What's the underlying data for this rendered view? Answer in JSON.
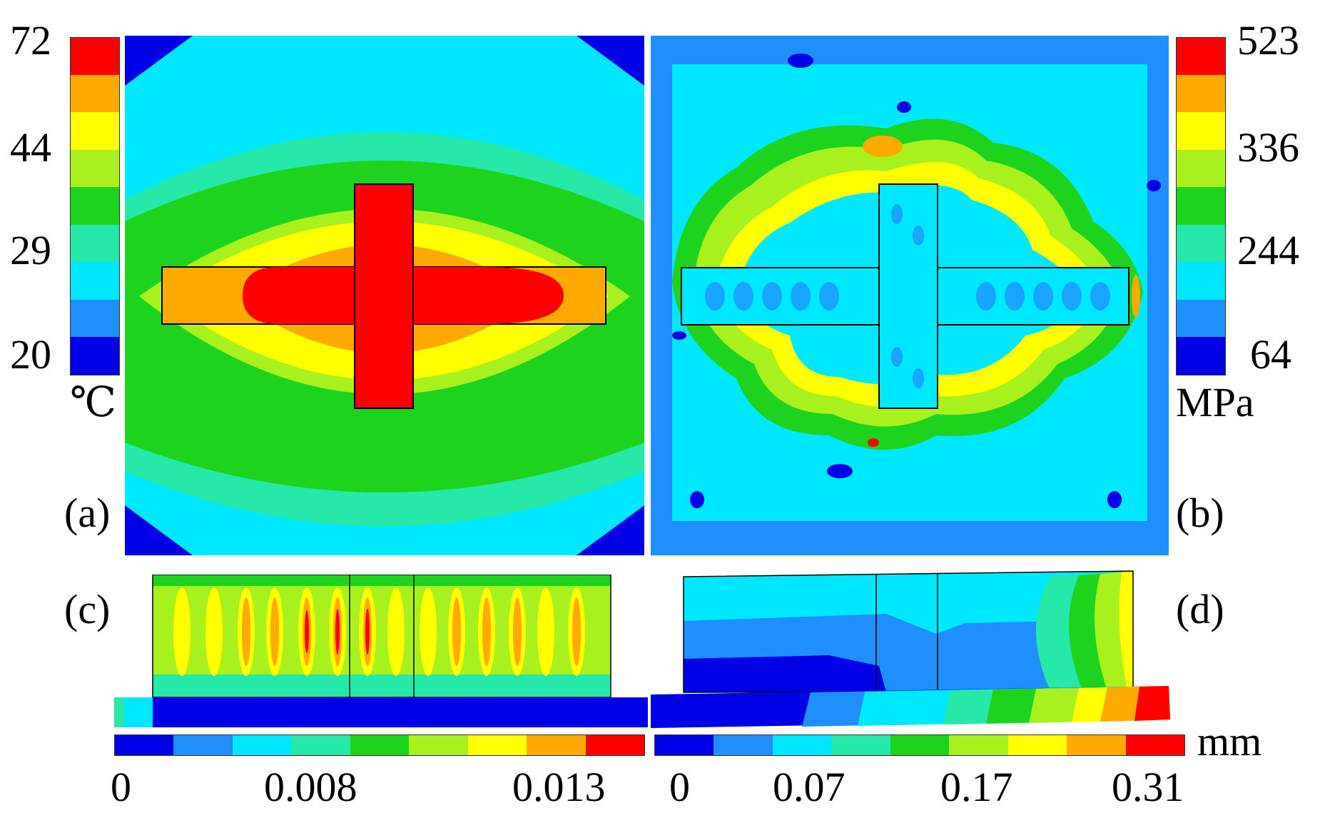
{
  "palette": [
    "#0000e6",
    "#1f8fff",
    "#00e8ff",
    "#26e8a8",
    "#1ed31e",
    "#a8f01e",
    "#ffff00",
    "#ffaa00",
    "#ff0000"
  ],
  "temperature_legend": {
    "ticks": [
      "72",
      "44",
      "29",
      "20"
    ],
    "unit": "℃"
  },
  "stress_legend": {
    "ticks": [
      "523",
      "336",
      "244",
      "64"
    ],
    "unit": "MPa"
  },
  "displacement_legend_left": {
    "ticks": [
      "0",
      "0.008",
      "0.013"
    ]
  },
  "displacement_legend_right": {
    "ticks": [
      "0",
      "0.07",
      "0.17",
      "0.31"
    ],
    "unit": "mm"
  },
  "panels": {
    "a": "(a)",
    "b": "(b)",
    "c": "(c)",
    "d": "(d)"
  }
}
